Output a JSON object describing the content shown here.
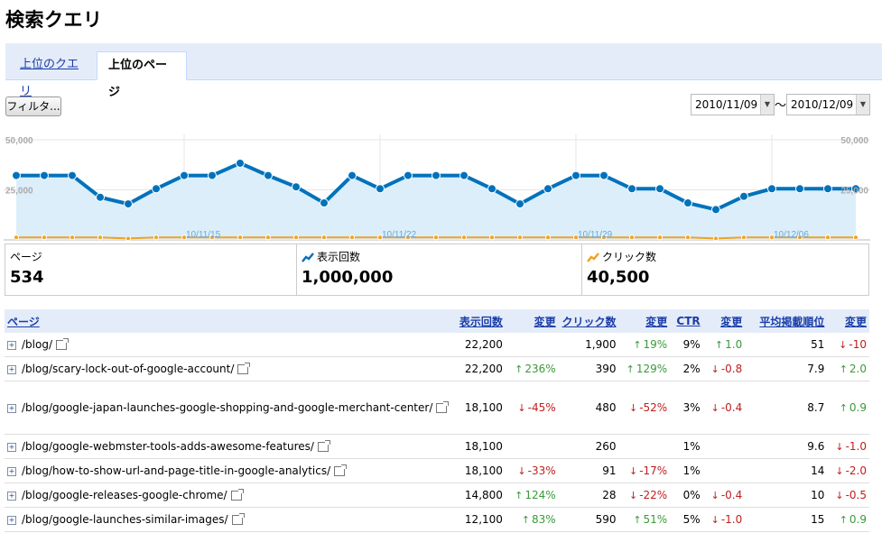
{
  "header": {
    "title": "検索クエリ"
  },
  "tabs": [
    {
      "label": "上位のクエリ",
      "active": false
    },
    {
      "label": "上位のページ",
      "active": true
    }
  ],
  "toolbar": {
    "filter_label": "フィルタ...",
    "date_from": "2010/11/09",
    "date_separator": "〜",
    "date_to": "2010/12/09"
  },
  "chart_data": {
    "type": "line",
    "y_left_ticks": [
      "50,000",
      "25,000"
    ],
    "y_right_ticks": [
      "50,000",
      "25,000"
    ],
    "ylim": [
      0,
      50000
    ],
    "x_tick_labels": [
      "10/11/15",
      "10/11/22",
      "10/11/29",
      "10/12/06"
    ],
    "x_tick_indices": [
      6,
      13,
      20,
      27
    ],
    "series": [
      {
        "name": "表示回数",
        "color": "#0072bc",
        "values": [
          34000,
          34000,
          34000,
          22500,
          19000,
          27000,
          34000,
          34000,
          40500,
          34000,
          28000,
          19500,
          34000,
          27000,
          34000,
          34000,
          34000,
          27000,
          19000,
          27000,
          34000,
          34000,
          27000,
          27000,
          19500,
          16000,
          23000,
          27000,
          27000,
          27000,
          27000
        ]
      },
      {
        "name": "クリック数",
        "color": "#f4a11f",
        "values": [
          1300,
          1300,
          1300,
          1300,
          800,
          1300,
          1300,
          1300,
          1300,
          1300,
          1300,
          1300,
          1300,
          1300,
          1300,
          1300,
          1300,
          1300,
          1300,
          1300,
          1300,
          1300,
          1300,
          1300,
          1300,
          800,
          1300,
          1300,
          1300,
          1300,
          1300
        ]
      }
    ],
    "area_fill": "#dbeefa"
  },
  "metrics": [
    {
      "label": "ページ",
      "value": "534",
      "icon": ""
    },
    {
      "label": "表示回数",
      "value": "1,000,000",
      "icon": "blue-trend-icon"
    },
    {
      "label": "クリック数",
      "value": "40,500",
      "icon": "orange-trend-icon"
    }
  ],
  "table": {
    "headers": [
      "ページ",
      "表示回数",
      "変更",
      "クリック数",
      "変更",
      "CTR",
      "変更",
      "平均掲載順位",
      "変更"
    ],
    "rows": [
      {
        "page": "/blog/",
        "impr": "22,200",
        "impr_chg": "",
        "impr_dir": "",
        "clicks": "1,900",
        "clicks_chg": "19%",
        "clicks_dir": "up",
        "ctr": "9%",
        "ctr_chg": "1.0",
        "ctr_dir": "up",
        "pos": "51",
        "pos_chg": "-10",
        "pos_dir": "down"
      },
      {
        "page": "/blog/scary-lock-out-of-google-account/",
        "impr": "22,200",
        "impr_chg": "236%",
        "impr_dir": "up",
        "clicks": "390",
        "clicks_chg": "129%",
        "clicks_dir": "up",
        "ctr": "2%",
        "ctr_chg": "-0.8",
        "ctr_dir": "down",
        "pos": "7.9",
        "pos_chg": "2.0",
        "pos_dir": "up"
      },
      {
        "page": "/blog/google-japan-launches-google-shopping-and-google-merchant-center/",
        "impr": "18,100",
        "impr_chg": "-45%",
        "impr_dir": "down",
        "clicks": "480",
        "clicks_chg": "-52%",
        "clicks_dir": "down",
        "ctr": "3%",
        "ctr_chg": "-0.4",
        "ctr_dir": "down",
        "pos": "8.7",
        "pos_chg": "0.9",
        "pos_dir": "up"
      },
      {
        "page": "/blog/google-webmster-tools-adds-awesome-features/",
        "impr": "18,100",
        "impr_chg": "",
        "impr_dir": "",
        "clicks": "260",
        "clicks_chg": "",
        "clicks_dir": "",
        "ctr": "1%",
        "ctr_chg": "",
        "ctr_dir": "",
        "pos": "9.6",
        "pos_chg": "-1.0",
        "pos_dir": "down"
      },
      {
        "page": "/blog/how-to-show-url-and-page-title-in-google-analytics/",
        "impr": "18,100",
        "impr_chg": "-33%",
        "impr_dir": "down",
        "clicks": "91",
        "clicks_chg": "-17%",
        "clicks_dir": "down",
        "ctr": "1%",
        "ctr_chg": "",
        "ctr_dir": "",
        "pos": "14",
        "pos_chg": "-2.0",
        "pos_dir": "down"
      },
      {
        "page": "/blog/google-releases-google-chrome/",
        "impr": "14,800",
        "impr_chg": "124%",
        "impr_dir": "up",
        "clicks": "28",
        "clicks_chg": "-22%",
        "clicks_dir": "down",
        "ctr": "0%",
        "ctr_chg": "-0.4",
        "ctr_dir": "down",
        "pos": "10",
        "pos_chg": "-0.5",
        "pos_dir": "down"
      },
      {
        "page": "/blog/google-launches-similar-images/",
        "impr": "12,100",
        "impr_chg": "83%",
        "impr_dir": "up",
        "clicks": "590",
        "clicks_chg": "51%",
        "clicks_dir": "up",
        "ctr": "5%",
        "ctr_chg": "-1.0",
        "ctr_dir": "down",
        "pos": "15",
        "pos_chg": "0.9",
        "pos_dir": "up"
      }
    ]
  }
}
